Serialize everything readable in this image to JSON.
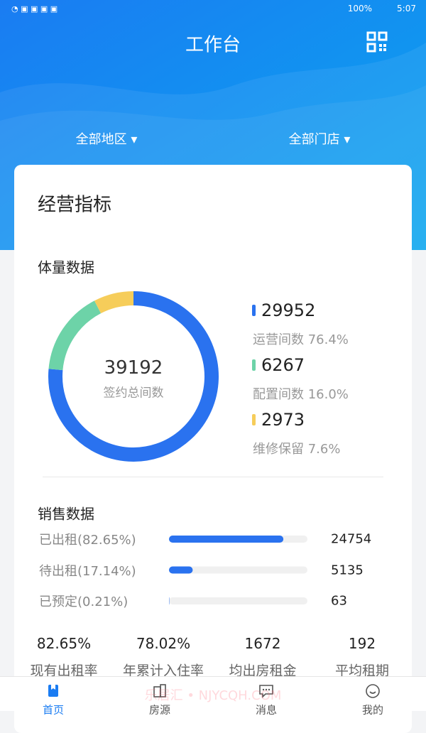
{
  "status_bar": {
    "battery": "100%",
    "time": "5:07"
  },
  "header": {
    "title": "工作台",
    "filters": [
      "全部地区",
      "全部门店"
    ]
  },
  "card": {
    "title": "经营指标"
  },
  "volume": {
    "title": "体量数据",
    "total": 39192,
    "total_label": "签约总间数",
    "items": [
      {
        "value": 29952,
        "label": "运营间数 76.4%",
        "color": "#2a72ef"
      },
      {
        "value": 6267,
        "label": "配置间数 16.0%",
        "color": "#6dd3a8"
      },
      {
        "value": 2973,
        "label": "维修保留 7.6%",
        "color": "#f6cd5a"
      }
    ]
  },
  "sales": {
    "title": "销售数据",
    "items": [
      {
        "label": "已出租(82.65%)",
        "value": 24754
      },
      {
        "label": "待出租(17.14%)",
        "value": 5135
      },
      {
        "label": "已预定(0.21%)",
        "value": 63
      }
    ],
    "color": "#2a72ef"
  },
  "stats": [
    {
      "value": "82.65%",
      "label": "现有出租率"
    },
    {
      "value": "78.02%",
      "label": "年累计入住率"
    },
    {
      "value": "1672",
      "label": "均出房租金"
    },
    {
      "value": "192",
      "label": "平均租期"
    }
  ],
  "watermark": "乐居汇 • NJYCQH.COM",
  "nav": {
    "tabs": [
      "首页",
      "房源",
      "消息",
      "我的"
    ],
    "active": 0
  }
}
